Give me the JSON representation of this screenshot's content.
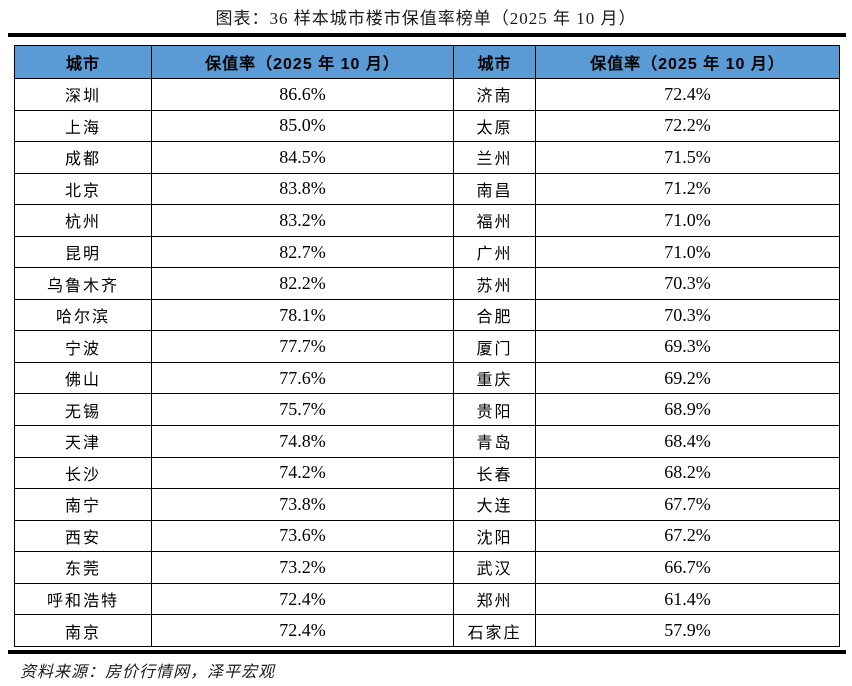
{
  "title": "图表：36 样本城市楼市保值率榜单（2025 年 10 月）",
  "source": "资料来源：房价行情网，泽平宏观",
  "colors": {
    "header_bg": "#5B9BD5",
    "border": "#000000",
    "text": "#000000"
  },
  "table": {
    "headers": [
      "城市",
      "保值率（2025 年 10 月）",
      "城市",
      "保值率（2025 年 10 月）"
    ],
    "rows": [
      [
        "深圳",
        "86.6%",
        "济南",
        "72.4%"
      ],
      [
        "上海",
        "85.0%",
        "太原",
        "72.2%"
      ],
      [
        "成都",
        "84.5%",
        "兰州",
        "71.5%"
      ],
      [
        "北京",
        "83.8%",
        "南昌",
        "71.2%"
      ],
      [
        "杭州",
        "83.2%",
        "福州",
        "71.0%"
      ],
      [
        "昆明",
        "82.7%",
        "广州",
        "71.0%"
      ],
      [
        "乌鲁木齐",
        "82.2%",
        "苏州",
        "70.3%"
      ],
      [
        "哈尔滨",
        "78.1%",
        "合肥",
        "70.3%"
      ],
      [
        "宁波",
        "77.7%",
        "厦门",
        "69.3%"
      ],
      [
        "佛山",
        "77.6%",
        "重庆",
        "69.2%"
      ],
      [
        "无锡",
        "75.7%",
        "贵阳",
        "68.9%"
      ],
      [
        "天津",
        "74.8%",
        "青岛",
        "68.4%"
      ],
      [
        "长沙",
        "74.2%",
        "长春",
        "68.2%"
      ],
      [
        "南宁",
        "73.8%",
        "大连",
        "67.7%"
      ],
      [
        "西安",
        "73.6%",
        "沈阳",
        "67.2%"
      ],
      [
        "东莞",
        "73.2%",
        "武汉",
        "66.7%"
      ],
      [
        "呼和浩特",
        "72.4%",
        "郑州",
        "61.4%"
      ],
      [
        "南京",
        "72.4%",
        "石家庄",
        "57.9%"
      ]
    ]
  },
  "chart_data": {
    "type": "table",
    "title": "图表：36 样本城市楼市保值率榜单（2025 年 10 月）",
    "columns": [
      "城市",
      "保值率（2025 年 10 月）"
    ],
    "rows": [
      {
        "city": "深圳",
        "rate_pct": 86.6
      },
      {
        "city": "上海",
        "rate_pct": 85.0
      },
      {
        "city": "成都",
        "rate_pct": 84.5
      },
      {
        "city": "北京",
        "rate_pct": 83.8
      },
      {
        "city": "杭州",
        "rate_pct": 83.2
      },
      {
        "city": "昆明",
        "rate_pct": 82.7
      },
      {
        "city": "乌鲁木齐",
        "rate_pct": 82.2
      },
      {
        "city": "哈尔滨",
        "rate_pct": 78.1
      },
      {
        "city": "宁波",
        "rate_pct": 77.7
      },
      {
        "city": "佛山",
        "rate_pct": 77.6
      },
      {
        "city": "无锡",
        "rate_pct": 75.7
      },
      {
        "city": "天津",
        "rate_pct": 74.8
      },
      {
        "city": "长沙",
        "rate_pct": 74.2
      },
      {
        "city": "南宁",
        "rate_pct": 73.8
      },
      {
        "city": "西安",
        "rate_pct": 73.6
      },
      {
        "city": "东莞",
        "rate_pct": 73.2
      },
      {
        "city": "呼和浩特",
        "rate_pct": 72.4
      },
      {
        "city": "南京",
        "rate_pct": 72.4
      },
      {
        "city": "济南",
        "rate_pct": 72.4
      },
      {
        "city": "太原",
        "rate_pct": 72.2
      },
      {
        "city": "兰州",
        "rate_pct": 71.5
      },
      {
        "city": "南昌",
        "rate_pct": 71.2
      },
      {
        "city": "福州",
        "rate_pct": 71.0
      },
      {
        "city": "广州",
        "rate_pct": 71.0
      },
      {
        "city": "苏州",
        "rate_pct": 70.3
      },
      {
        "city": "合肥",
        "rate_pct": 70.3
      },
      {
        "city": "厦门",
        "rate_pct": 69.3
      },
      {
        "city": "重庆",
        "rate_pct": 69.2
      },
      {
        "city": "贵阳",
        "rate_pct": 68.9
      },
      {
        "city": "青岛",
        "rate_pct": 68.4
      },
      {
        "city": "长春",
        "rate_pct": 68.2
      },
      {
        "city": "大连",
        "rate_pct": 67.7
      },
      {
        "city": "沈阳",
        "rate_pct": 67.2
      },
      {
        "city": "武汉",
        "rate_pct": 66.7
      },
      {
        "city": "郑州",
        "rate_pct": 61.4
      },
      {
        "city": "石家庄",
        "rate_pct": 57.9
      }
    ],
    "source": "资料来源：房价行情网，泽平宏观"
  }
}
